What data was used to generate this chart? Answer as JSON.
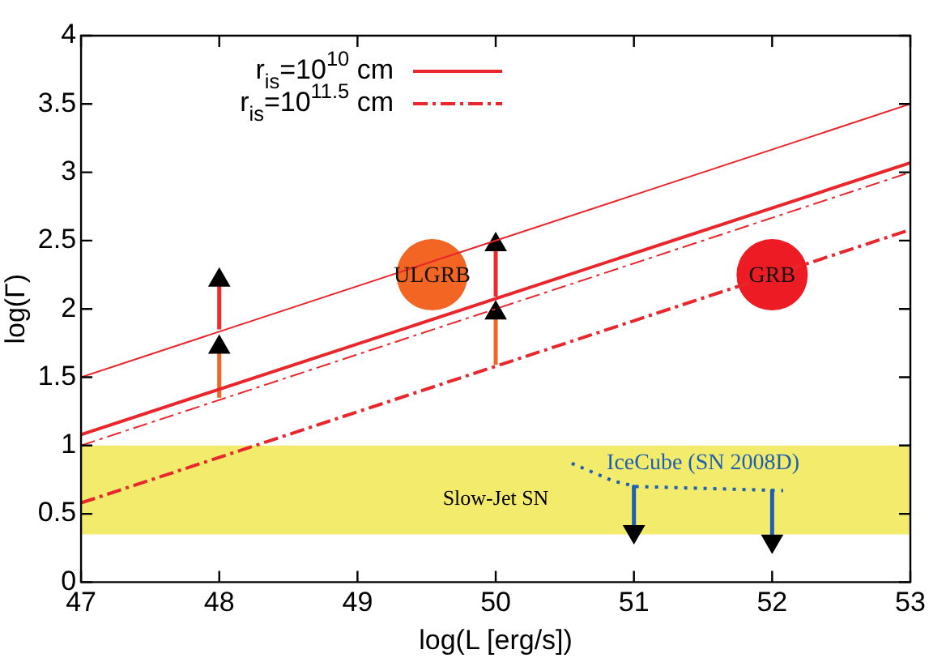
{
  "chart_data": {
    "type": "line",
    "xlabel": "log(L [erg/s])",
    "ylabel": "log(Γ)",
    "xlim": [
      47,
      53
    ],
    "xticks": [
      47,
      48,
      49,
      50,
      51,
      52,
      53
    ],
    "ylim": [
      0,
      4
    ],
    "yticks": [
      0,
      0.5,
      1,
      1.5,
      2,
      2.5,
      3,
      3.5,
      4
    ],
    "grid": false,
    "legend": "top left",
    "series": [
      {
        "name": "r$_{is}$=10$^{10}$ cm",
        "color": "#e8262b",
        "line_style": "solid",
        "marker": "none",
        "x": [
          47,
          53
        ],
        "values": [
          1.08,
          3.07
        ]
      },
      {
        "type": "line",
        "color": "#e8262b",
        "line_style": "solid",
        "marker": "none",
        "x": [
          47,
          53
        ],
        "values": [
          1.5,
          3.5
        ]
      },
      {
        "name": "r$_{is}$=10$^{11.5}$ cm",
        "color": "#e8262b",
        "line_style": "dashed",
        "marker": "none",
        "x": [
          47,
          53
        ],
        "values": [
          0.58,
          2.58
        ]
      },
      {
        "type": "line",
        "color": "#e8262b",
        "line_style": "dashed",
        "marker": "none",
        "x": [
          47,
          53
        ],
        "values": [
          1.0,
          3.0
        ]
      },
      {
        "type": "line",
        "color": "#f26522",
        "line_style": "solid",
        "marker": "triangle",
        "x": [
          48,
          48
        ],
        "values": [
          1.35,
          1.72
        ]
      },
      {
        "type": "line",
        "color": "#ee2a2a",
        "line_style": "solid",
        "marker": "triangle",
        "x": [
          48,
          48
        ],
        "values": [
          1.85,
          2.21
        ]
      },
      {
        "type": "line",
        "color": "#f26522",
        "line_style": "solid",
        "marker": "triangle",
        "x": [
          50,
          50
        ],
        "values": [
          1.59,
          1.97
        ]
      },
      {
        "type": "line",
        "color": "#ee2a2a",
        "line_style": "solid",
        "marker": "triangle",
        "x": [
          50,
          50
        ],
        "values": [
          2.09,
          2.47
        ]
      },
      {
        "name": "IceCube (SN 2008D)",
        "color": "#1f5fb0",
        "line_style": "dotted",
        "marker": "none",
        "x": [
          50.55,
          50.85,
          51.02,
          52.08
        ],
        "values": [
          0.87,
          0.74,
          0.7,
          0.67
        ]
      },
      {
        "type": "line",
        "color": "#1f5fb0",
        "line_style": "solid",
        "marker": "triangle",
        "x": [
          51,
          51
        ],
        "values": [
          0.7,
          0.37
        ]
      },
      {
        "type": "line",
        "color": "#1f5fb0",
        "line_style": "solid",
        "marker": "triangle",
        "x": [
          52,
          52
        ],
        "values": [
          0.67,
          0.3
        ]
      },
      {
        "type": "scatter",
        "name": "ULGRB",
        "color": "#f26522",
        "marker": "circle",
        "x": [
          49.54
        ],
        "values": [
          2.25
        ]
      },
      {
        "type": "scatter",
        "name": "GRB",
        "color": "#ed1c24",
        "marker": "circle",
        "x": [
          52
        ],
        "values": [
          2.25
        ]
      }
    ],
    "bands": [
      {
        "axis": "y",
        "from": 0.35,
        "to": 1.0,
        "label": "Slow-Jet SN",
        "color": "#f3eb6b"
      }
    ]
  }
}
